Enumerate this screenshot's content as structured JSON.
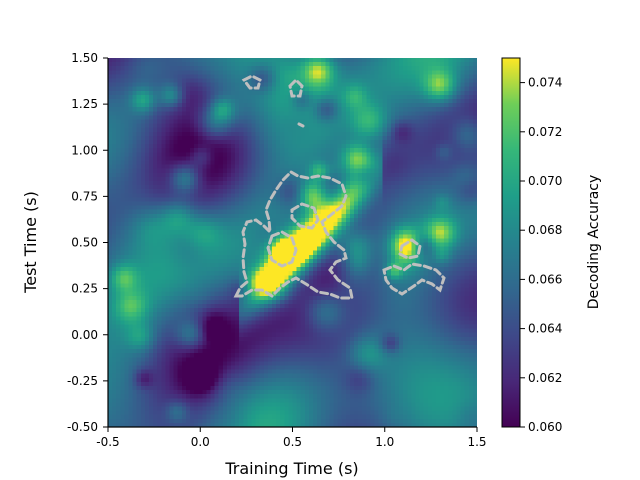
{
  "chart_data": {
    "type": "heatmap",
    "title": "",
    "xlabel": "Training Time (s)",
    "ylabel": "Test Time (s)",
    "xlim": [
      -0.5,
      1.5
    ],
    "ylim": [
      -0.5,
      1.5
    ],
    "x_ticks": [
      "-0.5",
      "0.0",
      "0.5",
      "1.0",
      "1.5"
    ],
    "y_ticks": [
      "-0.50",
      "-0.25",
      "0.00",
      "0.25",
      "0.50",
      "0.75",
      "1.00",
      "1.25",
      "1.50"
    ],
    "colorbar": {
      "label": "Decoding Accuracy",
      "min": 0.06,
      "max": 0.075,
      "colormap": "viridis",
      "ticks": [
        "0.060",
        "0.062",
        "0.064",
        "0.066",
        "0.068",
        "0.070",
        "0.072",
        "0.074"
      ]
    },
    "high_regions": [
      {
        "x": 0.45,
        "y": 0.45,
        "value": 0.075
      },
      {
        "x": 0.62,
        "y": 0.75,
        "value": 0.075
      },
      {
        "x": 0.85,
        "y": 0.95,
        "value": 0.075
      },
      {
        "x": 0.35,
        "y": 0.3,
        "value": 0.075
      },
      {
        "x": 0.64,
        "y": 1.43,
        "value": 0.073
      },
      {
        "x": -0.08,
        "y": 0.85,
        "value": 0.072
      },
      {
        "x": 1.3,
        "y": 0.55,
        "value": 0.073
      },
      {
        "x": 1.12,
        "y": 0.5,
        "value": 0.072
      },
      {
        "x": 1.3,
        "y": 1.35,
        "value": 0.072
      }
    ],
    "significance_contour": {
      "style": "dashed",
      "color": "#bfbfbf",
      "clusters": [
        {
          "x": [
            0.2,
            0.85
          ],
          "y": [
            0.2,
            0.9
          ]
        },
        {
          "x": [
            1.0,
            1.35
          ],
          "y": [
            0.22,
            0.4
          ]
        },
        {
          "x": [
            0.25,
            0.35
          ],
          "y": [
            1.35,
            1.4
          ]
        },
        {
          "x": [
            0.47,
            0.55
          ],
          "y": [
            1.3,
            1.4
          ]
        }
      ]
    },
    "grid": false
  }
}
